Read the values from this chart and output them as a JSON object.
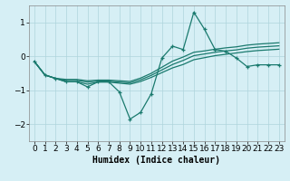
{
  "xlabel": "Humidex (Indice chaleur)",
  "ylabel": "",
  "background_color": "#d6eff5",
  "grid_color": "#aed4dc",
  "line_color": "#1a7a6e",
  "x_main": [
    0,
    1,
    2,
    3,
    4,
    5,
    6,
    7,
    8,
    9,
    10,
    11,
    12,
    13,
    14,
    15,
    16,
    17,
    18,
    19,
    20,
    21,
    22,
    23
  ],
  "y_main": [
    -0.15,
    -0.55,
    -0.65,
    -0.75,
    -0.75,
    -0.9,
    -0.75,
    -0.75,
    -1.05,
    -1.85,
    -1.65,
    -1.1,
    -0.05,
    0.3,
    0.2,
    1.3,
    0.8,
    0.2,
    0.15,
    -0.05,
    -0.3,
    -0.25,
    -0.25,
    -0.25
  ],
  "y_line2": [
    -0.15,
    -0.55,
    -0.65,
    -0.75,
    -0.75,
    -0.82,
    -0.76,
    -0.76,
    -0.79,
    -0.82,
    -0.74,
    -0.62,
    -0.48,
    -0.34,
    -0.24,
    -0.1,
    -0.04,
    0.02,
    0.06,
    0.1,
    0.14,
    0.17,
    0.19,
    0.21
  ],
  "y_line3": [
    -0.15,
    -0.55,
    -0.65,
    -0.71,
    -0.71,
    -0.76,
    -0.73,
    -0.73,
    -0.76,
    -0.78,
    -0.69,
    -0.56,
    -0.4,
    -0.24,
    -0.12,
    0.02,
    0.07,
    0.12,
    0.16,
    0.19,
    0.24,
    0.27,
    0.29,
    0.31
  ],
  "y_line4": [
    -0.15,
    -0.55,
    -0.65,
    -0.68,
    -0.68,
    -0.72,
    -0.7,
    -0.7,
    -0.72,
    -0.74,
    -0.64,
    -0.5,
    -0.32,
    -0.14,
    -0.02,
    0.12,
    0.16,
    0.21,
    0.25,
    0.28,
    0.33,
    0.36,
    0.38,
    0.4
  ],
  "ylim": [
    -2.5,
    1.5
  ],
  "xlim": [
    -0.5,
    23.5
  ],
  "yticks": [
    -2,
    -1,
    0,
    1
  ],
  "xticks": [
    0,
    1,
    2,
    3,
    4,
    5,
    6,
    7,
    8,
    9,
    10,
    11,
    12,
    13,
    14,
    15,
    16,
    17,
    18,
    19,
    20,
    21,
    22,
    23
  ],
  "xlabel_fontsize": 7,
  "tick_fontsize": 6.5
}
